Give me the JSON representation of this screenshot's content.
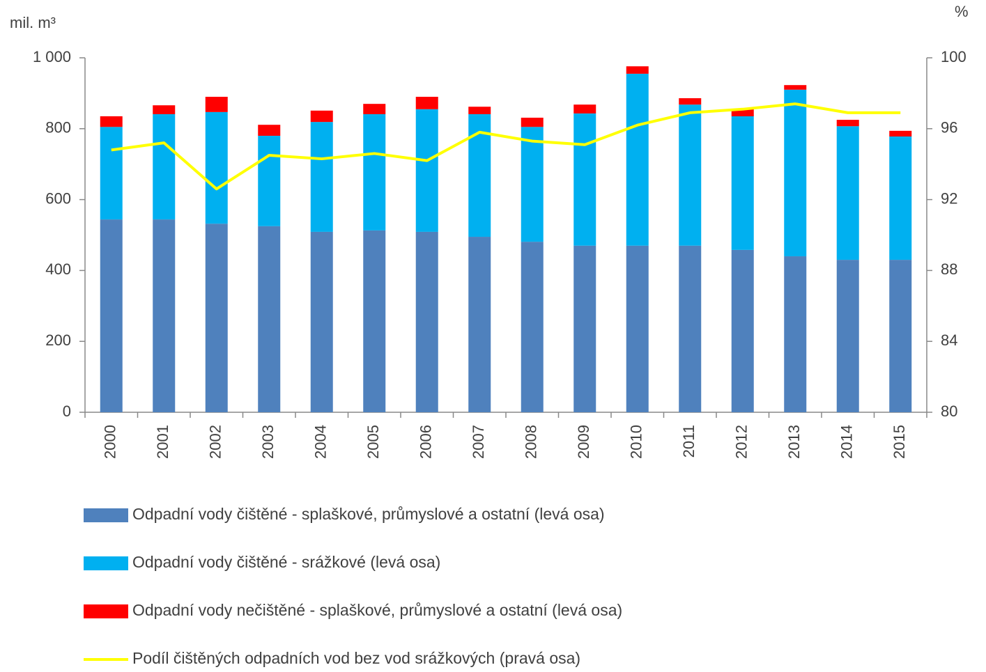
{
  "chart_data": {
    "type": "bar",
    "stacked": true,
    "y_axis_label": "mil. m³",
    "y2_axis_label": "%",
    "categories": [
      "2000",
      "2001",
      "2002",
      "2003",
      "2004",
      "2005",
      "2006",
      "2007",
      "2008",
      "2009",
      "2010",
      "2011",
      "2012",
      "2013",
      "2014",
      "2015"
    ],
    "series": [
      {
        "name": "Odpadní vody čištěné - splaškové, průmyslové a ostatní (levá osa)",
        "type": "bar",
        "color": "#4f81bd",
        "values": [
          544,
          544,
          532,
          525,
          509,
          513,
          509,
          495,
          481,
          470,
          470,
          470,
          458,
          440,
          430,
          430
        ]
      },
      {
        "name": "Odpadní vody čištěné - srážkové (levá osa)",
        "type": "bar",
        "color": "#00b0f0",
        "values": [
          261,
          297,
          315,
          255,
          310,
          328,
          346,
          346,
          324,
          373,
          485,
          398,
          377,
          470,
          377,
          348
        ]
      },
      {
        "name": "Odpadní vody nečištěné - splaškové, průmyslové a ostatní (levá osa)",
        "type": "bar",
        "color": "#ff0000",
        "values": [
          30,
          25,
          43,
          31,
          32,
          29,
          35,
          21,
          26,
          25,
          21,
          18,
          20,
          13,
          18,
          16
        ]
      },
      {
        "name": "Podíl čištěných odpadních vod bez vod srážkových (pravá osa)",
        "type": "line",
        "axis": "y2",
        "color": "#ffff00",
        "values": [
          94.8,
          95.2,
          92.6,
          94.5,
          94.3,
          94.6,
          94.2,
          95.8,
          95.3,
          95.1,
          96.2,
          96.9,
          97.1,
          97.4,
          96.9,
          96.9
        ]
      }
    ],
    "ylim": [
      0,
      1000
    ],
    "yticks": [
      0,
      200,
      400,
      600,
      800,
      {
        "value": 1000,
        "label": "1 000"
      }
    ],
    "y2lim": [
      80,
      100
    ],
    "y2ticks": [
      80,
      84,
      88,
      92,
      96,
      100
    ],
    "grid": false,
    "legend": "bottom"
  }
}
